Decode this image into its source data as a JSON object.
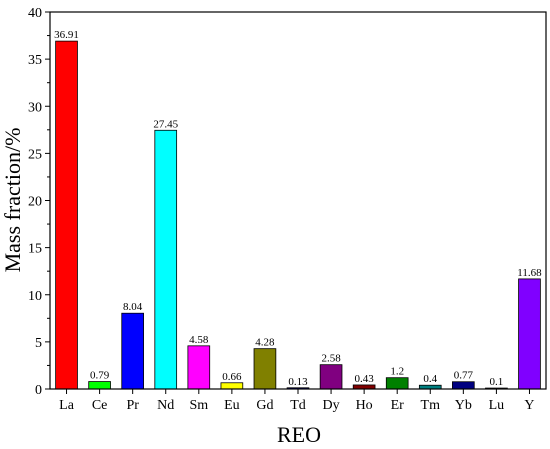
{
  "chart_data": {
    "type": "bar",
    "title": "",
    "xlabel": "REO",
    "ylabel": "Mass fraction/%",
    "ylim": [
      0,
      40
    ],
    "yticks": [
      0,
      5,
      10,
      15,
      20,
      25,
      30,
      35,
      40
    ],
    "grid": false,
    "categories": [
      "La",
      "Ce",
      "Pr",
      "Nd",
      "Sm",
      "Eu",
      "Gd",
      "Td",
      "Dy",
      "Ho",
      "Er",
      "Tm",
      "Yb",
      "Lu",
      "Y"
    ],
    "values": [
      36.91,
      0.79,
      8.04,
      27.45,
      4.58,
      0.66,
      4.28,
      0.13,
      2.58,
      0.43,
      1.2,
      0.4,
      0.77,
      0.1,
      11.68
    ],
    "value_labels": [
      "36.91",
      "0.79",
      "8.04",
      "27.45",
      "4.58",
      "0.66",
      "4.28",
      "0.13",
      "2.58",
      "0.43",
      "1.2",
      "0.4",
      "0.77",
      "0.1",
      "11.68"
    ],
    "colors": [
      "#ff0000",
      "#00ff00",
      "#0000ff",
      "#00ffff",
      "#ff00ff",
      "#ffff00",
      "#808000",
      "#000080",
      "#800080",
      "#800000",
      "#008000",
      "#008080",
      "#000080",
      "#c0c0c0",
      "#8000ff"
    ]
  }
}
